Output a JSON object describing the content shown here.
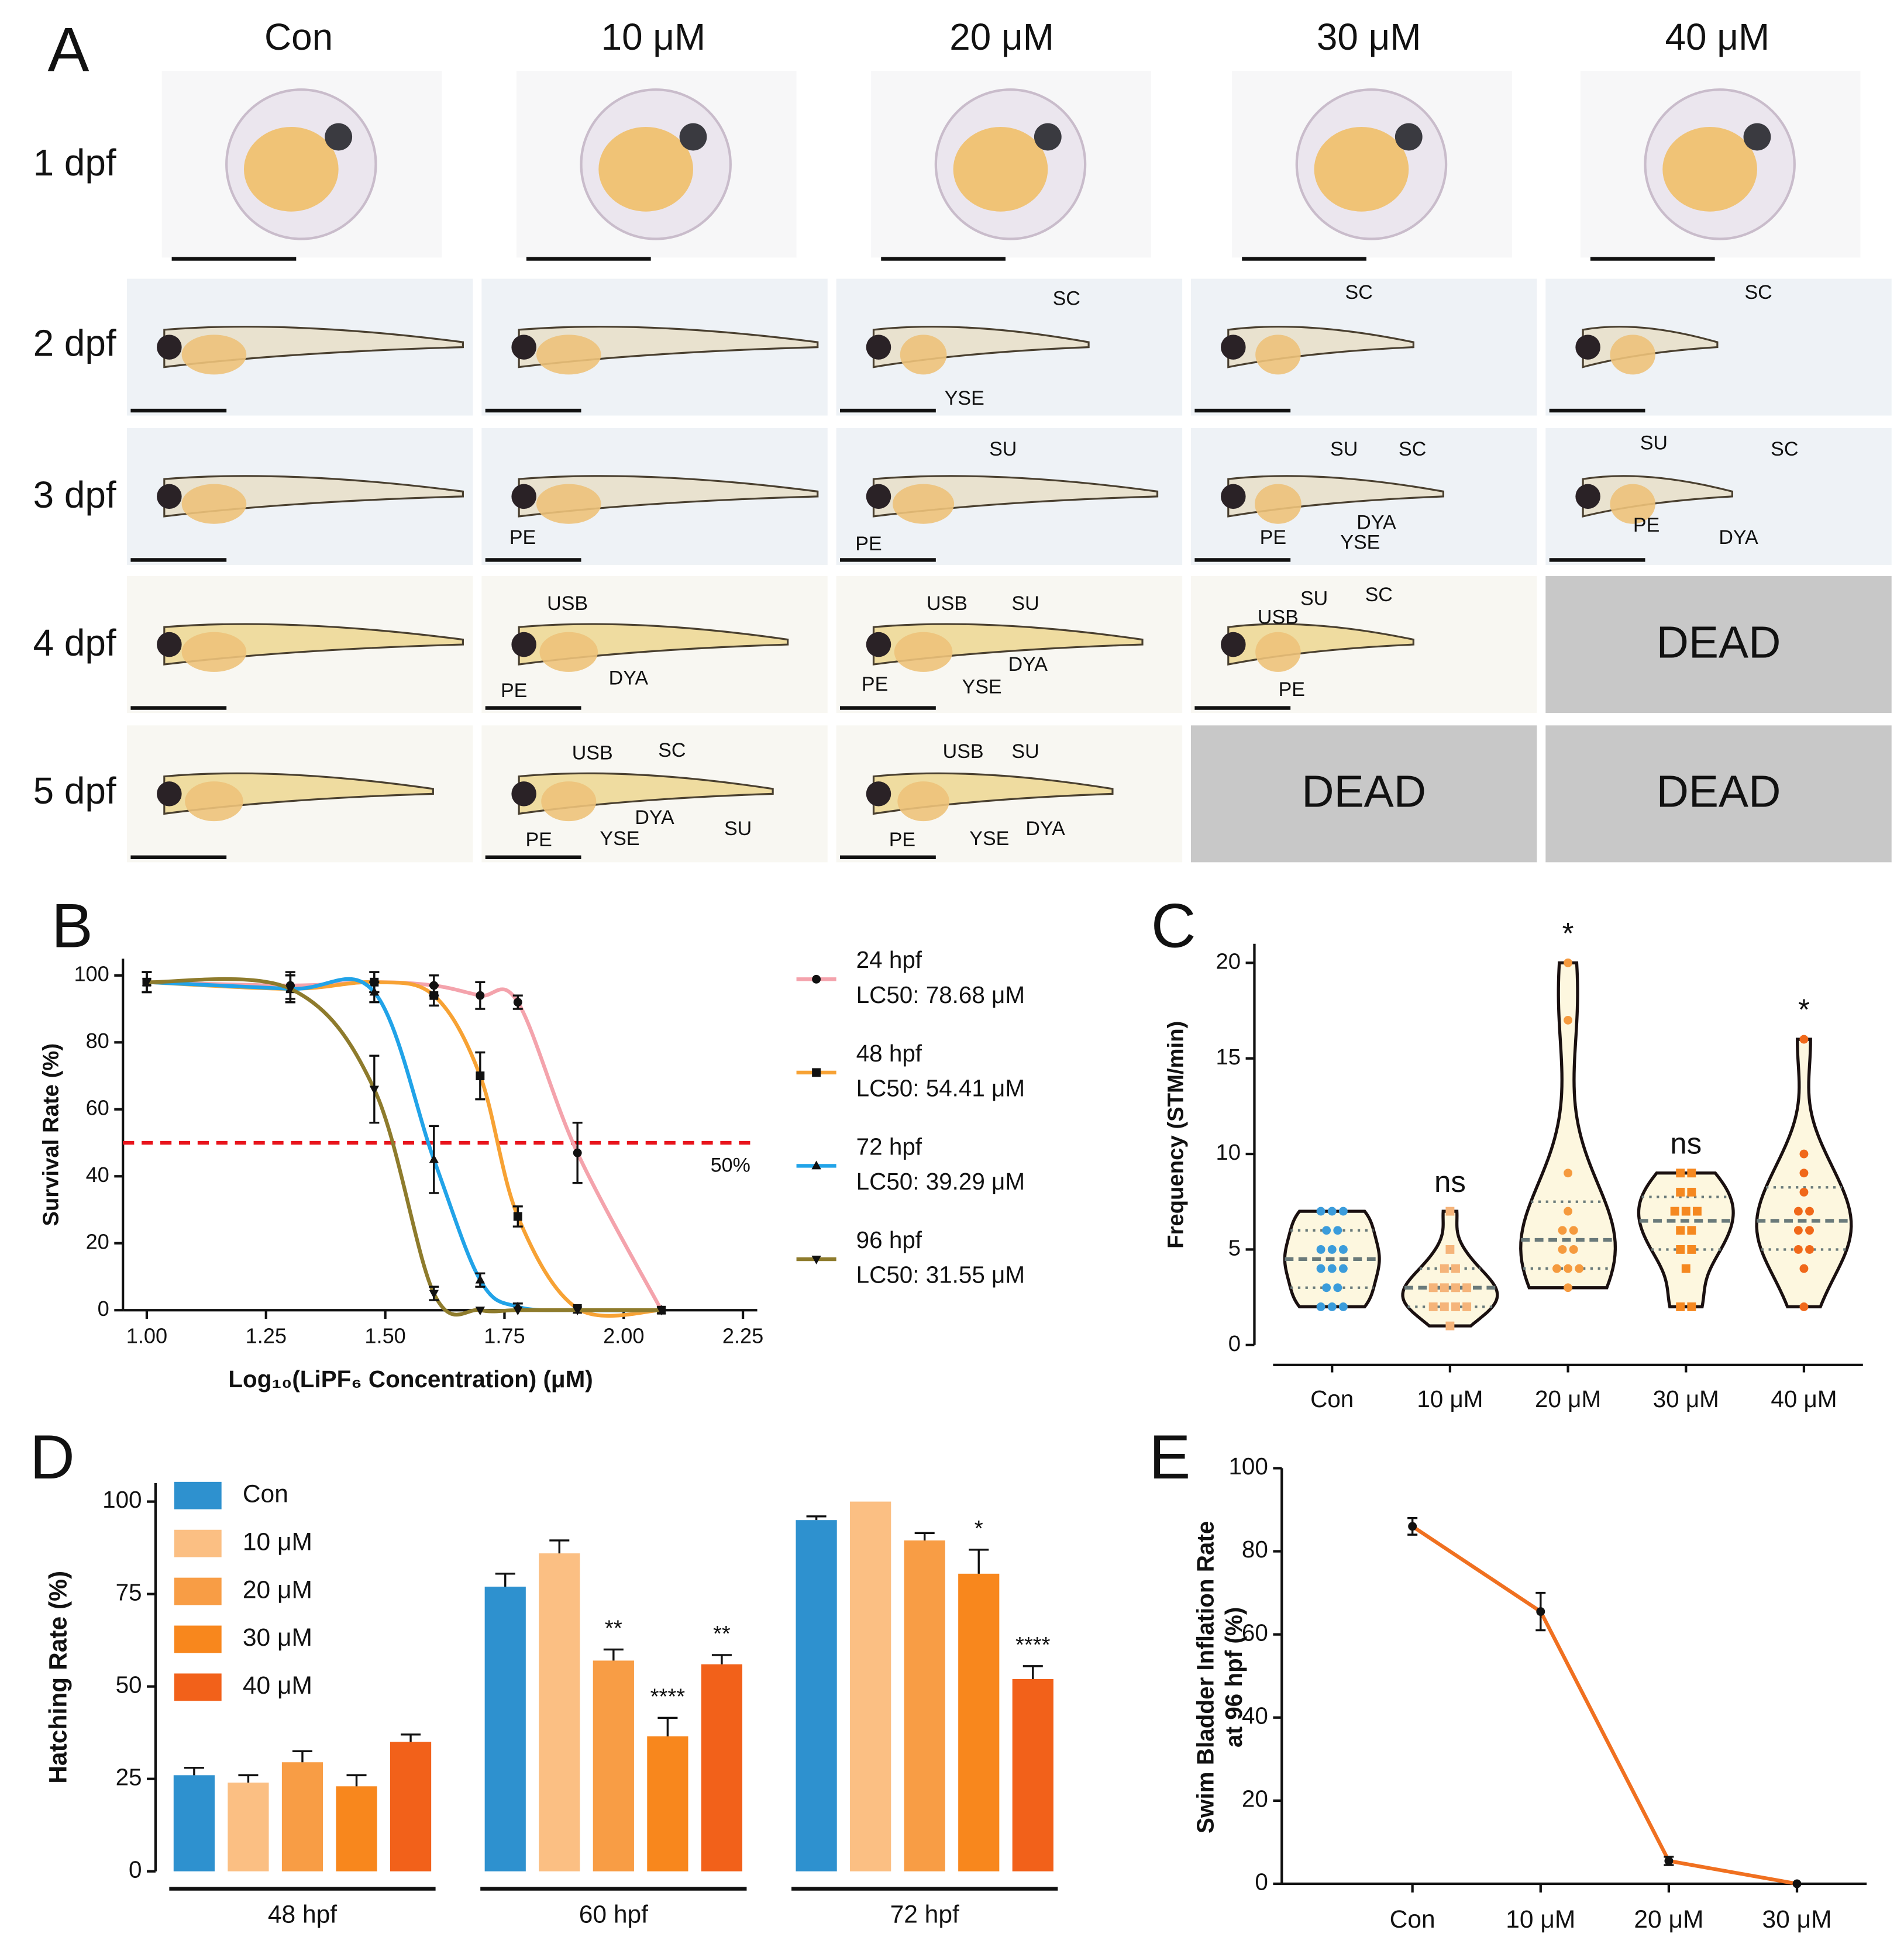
{
  "panel_a": {
    "letter": "A",
    "columns": [
      "Con",
      "10 μM",
      "20 μM",
      "30 μM",
      "40 μM"
    ],
    "rows": [
      "1 dpf",
      "2 dpf",
      "3 dpf",
      "4 dpf",
      "5 dpf"
    ],
    "cells": [
      [
        [],
        [],
        [],
        [],
        []
      ],
      [
        [],
        [],
        [
          "SC",
          "YSE"
        ],
        [
          "SC"
        ],
        [
          "SC"
        ]
      ],
      [
        [],
        [
          "PE"
        ],
        [
          "SU",
          "PE"
        ],
        [
          "SU",
          "SC",
          "PE",
          "DYA",
          "YSE"
        ],
        [
          "SU",
          "SC",
          "PE",
          "DYA"
        ]
      ],
      [
        [],
        [
          "USB",
          "PE",
          "DYA"
        ],
        [
          "USB",
          "SU",
          "PE",
          "DYA",
          "YSE"
        ],
        [
          "USB",
          "SU",
          "SC",
          "PE"
        ],
        "DEAD"
      ],
      [
        [],
        [
          "USB",
          "SC",
          "PE",
          "DYA",
          "YSE",
          "SU"
        ],
        [
          "USB",
          "SU",
          "PE",
          "YSE",
          "DYA"
        ],
        "DEAD",
        "DEAD"
      ]
    ]
  },
  "chart_data": [
    {
      "type": "line",
      "letter": "B",
      "y_label": "Survival Rate (%)",
      "x_label": "Log₁₀(LiPF₆ Concentration) (μM)",
      "x": [
        1.0,
        1.301,
        1.477,
        1.602,
        1.699,
        1.778,
        1.903,
        2.079
      ],
      "xlim": [
        0.95,
        2.28
      ],
      "xticks": [
        {
          "value": 1.0,
          "label": "1.00"
        },
        {
          "value": 1.25,
          "label": "1.25"
        },
        {
          "value": 1.5,
          "label": "1.50"
        },
        {
          "value": 1.75,
          "label": "1.75"
        },
        {
          "value": 2.0,
          "label": "2.00"
        },
        {
          "value": 2.25,
          "label": "2.25"
        }
      ],
      "ylim": [
        0,
        105
      ],
      "yticks": [
        0,
        20,
        40,
        60,
        80,
        100
      ],
      "reference_line": {
        "value": 50,
        "label": "50%",
        "color": "#e8141c"
      },
      "series": [
        {
          "name": "24 hpf",
          "legend_detail": "LC50: 78.68 μM",
          "color": "#f4a3ac",
          "marker": "circle",
          "values": [
            98,
            97,
            98,
            97,
            94,
            92,
            47,
            0
          ],
          "errors": [
            3,
            4,
            3,
            3,
            4,
            2,
            9,
            0
          ]
        },
        {
          "name": "48 hpf",
          "legend_detail": "LC50: 54.41 μM",
          "color": "#f7a234",
          "marker": "square",
          "values": [
            98,
            96,
            98,
            94,
            70,
            28,
            0.5,
            0
          ],
          "errors": [
            3,
            4,
            3,
            3,
            7,
            3,
            0,
            0
          ]
        },
        {
          "name": "72 hpf",
          "legend_detail": "LC50: 39.29 μM",
          "color": "#21a3e8",
          "marker": "triangle",
          "values": [
            98,
            96,
            95,
            45,
            9,
            1,
            0,
            0
          ],
          "errors": [
            3,
            4,
            3,
            10,
            2,
            1,
            0,
            0
          ]
        },
        {
          "name": "96 hpf",
          "legend_detail": "LC50: 31.55 μM",
          "color": "#8e7b2c",
          "marker": "triangle-down",
          "values": [
            98,
            96,
            66,
            5,
            0,
            0,
            0,
            0
          ],
          "errors": [
            3,
            4,
            10,
            2,
            0,
            0,
            0,
            0
          ]
        }
      ]
    },
    {
      "type": "violin",
      "letter": "C",
      "y_label": "Frequency (STM/min)",
      "categories": [
        "Con",
        "10 μM",
        "20 μM",
        "30 μM",
        "40 μM"
      ],
      "colors": [
        "#3b9cdb",
        "#f5b47a",
        "#f59a3e",
        "#f58820",
        "#f0681a"
      ],
      "markers": [
        "circle",
        "square",
        "circle",
        "square",
        "circle"
      ],
      "fill": "#fdf7df",
      "values": [
        [
          7,
          7,
          7,
          6,
          6,
          5,
          5,
          5,
          4,
          4,
          4,
          3,
          3,
          2,
          2,
          2
        ],
        [
          7,
          5,
          4,
          4,
          3,
          3,
          3,
          3,
          2,
          2,
          2,
          2,
          1
        ],
        [
          20,
          17,
          9,
          7,
          6,
          6,
          5,
          5,
          4,
          4,
          4,
          3
        ],
        [
          9,
          9,
          8,
          8,
          7,
          7,
          7,
          6,
          6,
          5,
          5,
          4,
          2,
          2
        ],
        [
          16,
          10,
          9,
          8,
          7,
          7,
          6,
          6,
          5,
          5,
          4,
          2
        ]
      ],
      "annotations": [
        null,
        "ns",
        "*",
        "ns",
        "*"
      ],
      "ylim": [
        0,
        21
      ],
      "yticks": [
        0,
        5,
        10,
        15,
        20
      ]
    },
    {
      "type": "grouped_bar",
      "letter": "D",
      "y_label": "Hatching Rate (%)",
      "categories": [
        "48 hpf",
        "60 hpf",
        "72 hpf"
      ],
      "series": [
        {
          "name": "Con",
          "color": "#2e91cf",
          "values": [
            26,
            77,
            95
          ],
          "errors": [
            2,
            3.5,
            1
          ],
          "annotations": [
            null,
            null,
            null
          ]
        },
        {
          "name": "10 μM",
          "color": "#fbbf83",
          "values": [
            24,
            86,
            100
          ],
          "errors": [
            2,
            3.5,
            0
          ],
          "annotations": [
            null,
            null,
            null
          ]
        },
        {
          "name": "20 μM",
          "color": "#f89d45",
          "values": [
            29.5,
            57,
            89.5
          ],
          "errors": [
            3,
            3,
            2
          ],
          "annotations": [
            null,
            "**",
            null
          ]
        },
        {
          "name": "30 μM",
          "color": "#f8871d",
          "values": [
            23,
            36.5,
            80.5
          ],
          "errors": [
            3,
            5,
            6.5
          ],
          "annotations": [
            null,
            "****",
            "*"
          ]
        },
        {
          "name": "40 μM",
          "color": "#f2611a",
          "values": [
            35,
            56,
            52
          ],
          "errors": [
            2,
            2.5,
            3.5
          ],
          "annotations": [
            null,
            "**",
            "****"
          ]
        }
      ],
      "ylim": [
        0,
        105
      ],
      "yticks": [
        0,
        25,
        50,
        75,
        100
      ]
    },
    {
      "type": "line",
      "letter": "E",
      "y_label": [
        "Swim Bladder Inflation Rate",
        "at 96 hpf (%)"
      ],
      "categories": [
        "Con",
        "10 μM",
        "20 μM",
        "30 μM"
      ],
      "values": [
        86,
        65.5,
        5.5,
        0
      ],
      "errors": [
        2,
        4.5,
        1,
        0
      ],
      "color": "#f07020",
      "ylim": [
        0,
        100
      ],
      "yticks": [
        0,
        20,
        40,
        60,
        80,
        100
      ]
    }
  ]
}
